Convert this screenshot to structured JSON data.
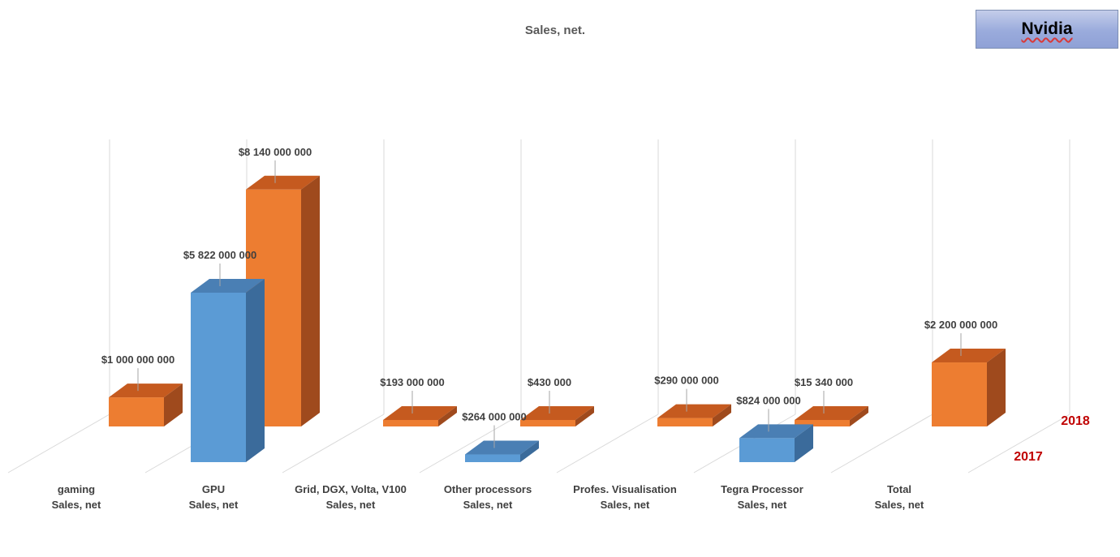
{
  "badge": {
    "label": "Nvidia"
  },
  "chart_data": {
    "type": "bar",
    "title": "Sales, net.",
    "categories": [
      [
        "gaming",
        "Sales, net"
      ],
      [
        "GPU",
        "Sales, net"
      ],
      [
        "Grid, DGX, Volta, V100",
        "Sales, net"
      ],
      [
        "Other processors",
        "Sales, net"
      ],
      [
        "Profes. Visualisation",
        "Sales, net"
      ],
      [
        "Tegra Processor",
        "Sales, net"
      ],
      [
        "Total",
        "Sales, net"
      ]
    ],
    "series": [
      {
        "name": "2017",
        "color": "#5b9bd5",
        "values": [
          null,
          5822000000,
          null,
          264000000,
          null,
          824000000,
          null
        ],
        "labels": [
          null,
          "$5 822 000 000",
          null,
          "$264 000 000",
          null,
          "$824 000 000",
          null
        ]
      },
      {
        "name": "2018",
        "color": "#ed7d31",
        "values": [
          1000000000,
          8140000000,
          193000000,
          430000,
          290000000,
          15340000,
          2200000000
        ],
        "labels": [
          "$1 000 000 000",
          "$8 140 000 000",
          "$193 000 000",
          "$430 000",
          "$290 000 000",
          "$15 340 000",
          "$2 200 000 000"
        ]
      }
    ],
    "grid": true,
    "legend": "right, along depth axis"
  }
}
